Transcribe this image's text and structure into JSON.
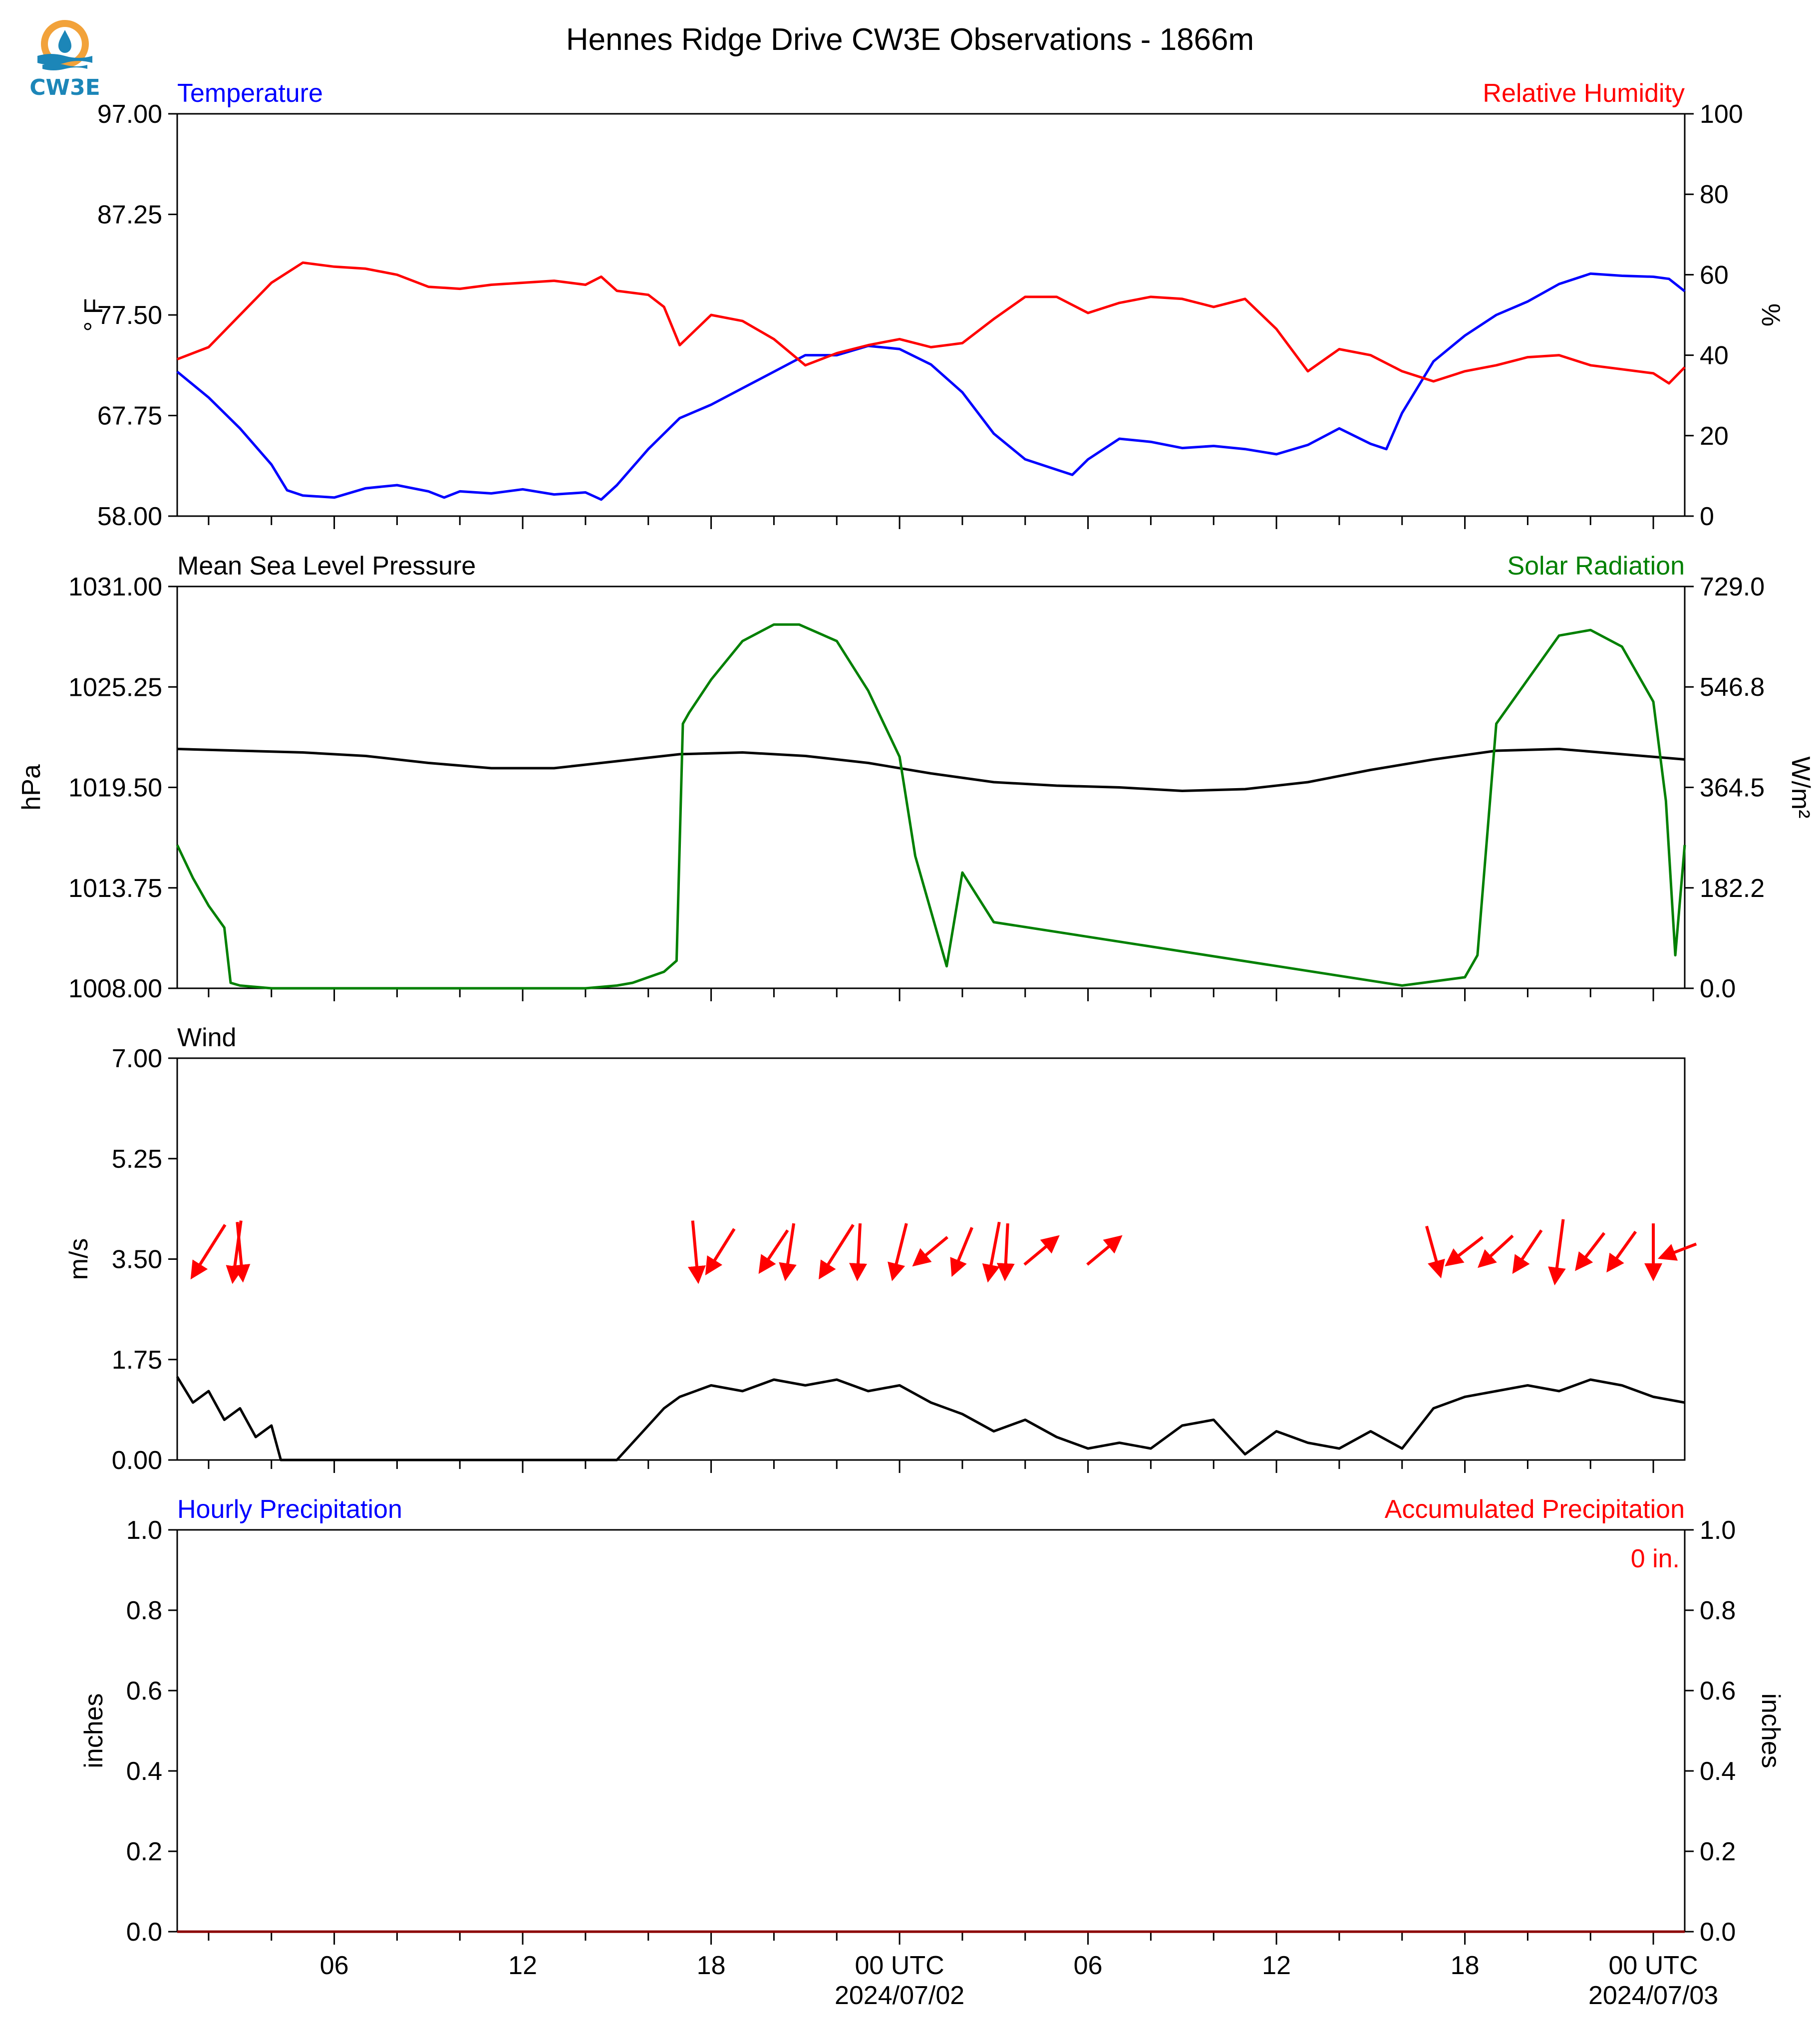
{
  "title": "Hennes Ridge Drive CW3E Observations - 1866m",
  "logo": {
    "text": "CW3E",
    "icon": "cw3e-logo-icon",
    "colors": {
      "ring": "#f2a23a",
      "drop": "#1c86b8"
    }
  },
  "x_axis": {
    "tick_labels": [
      "06",
      "12",
      "18",
      "00 UTC",
      "06",
      "12",
      "18",
      "00 UTC"
    ],
    "tick_hours": [
      6,
      12,
      18,
      24,
      30,
      36,
      42,
      48
    ],
    "date_labels": [
      {
        "hour": 24,
        "text": "2024/07/02"
      },
      {
        "hour": 48,
        "text": "2024/07/03"
      }
    ],
    "hour_range": [
      1,
      49
    ]
  },
  "chart_data": [
    {
      "type": "line",
      "panel": "temperature-humidity",
      "left_title": "Temperature",
      "right_title": "Relative Humidity",
      "ylabel": "° F",
      "ylabel_right": "%",
      "ylim": [
        58.0,
        97.0
      ],
      "ylim_right": [
        0,
        100
      ],
      "yticks": [
        "58.00",
        "67.75",
        "77.50",
        "87.25",
        "97.00"
      ],
      "yticks_right": [
        "0",
        "20",
        "40",
        "60",
        "80",
        "100"
      ],
      "series": [
        {
          "name": "Temperature",
          "axis": "left",
          "color": "#0000ff",
          "x": [
            1,
            2,
            3,
            4,
            4.5,
            5,
            6,
            7,
            8,
            9,
            9.5,
            10,
            11,
            12,
            13,
            14,
            14.5,
            15,
            16,
            17,
            18,
            19,
            20,
            21,
            22,
            23,
            24,
            25,
            26,
            27,
            28,
            29,
            29.5,
            30,
            31,
            32,
            33,
            34,
            35,
            36,
            37,
            38,
            39,
            39.5,
            40,
            41,
            42,
            43,
            44,
            45,
            46,
            47,
            48,
            48.5,
            49
          ],
          "y": [
            72.0,
            69.5,
            66.5,
            63.0,
            60.5,
            60.0,
            59.8,
            60.7,
            61.0,
            60.4,
            59.8,
            60.4,
            60.2,
            60.6,
            60.1,
            60.3,
            59.6,
            61.0,
            64.5,
            67.5,
            68.8,
            70.4,
            72.0,
            73.6,
            73.6,
            74.5,
            74.2,
            72.7,
            70.0,
            66.0,
            63.5,
            62.5,
            62.0,
            63.5,
            65.5,
            65.2,
            64.6,
            64.8,
            64.5,
            64.0,
            64.9,
            66.5,
            65.0,
            64.5,
            68.0,
            73.0,
            75.5,
            77.5,
            78.8,
            80.5,
            81.5,
            81.3,
            81.2,
            81.0,
            79.8
          ]
        },
        {
          "name": "Relative Humidity",
          "axis": "right",
          "color": "#ff0000",
          "x": [
            1,
            2,
            3,
            4,
            5,
            6,
            7,
            8,
            9,
            10,
            11,
            12,
            13,
            14,
            14.5,
            15,
            16,
            16.5,
            17,
            18,
            19,
            20,
            21,
            22,
            23,
            24,
            25,
            26,
            27,
            28,
            29,
            30,
            31,
            32,
            33,
            34,
            35,
            36,
            37,
            38,
            39,
            40,
            41,
            42,
            43,
            44,
            45,
            46,
            47,
            48,
            48.5,
            49
          ],
          "y": [
            39.0,
            42.0,
            50.0,
            58.0,
            63.0,
            62.0,
            61.5,
            60.0,
            57.0,
            56.5,
            57.5,
            58.0,
            58.5,
            57.5,
            59.5,
            56.0,
            55.0,
            52.0,
            42.5,
            50.0,
            48.5,
            44.0,
            37.5,
            40.5,
            42.5,
            44.0,
            42.0,
            43.0,
            49.0,
            54.5,
            54.5,
            50.5,
            53.0,
            54.5,
            54.0,
            52.0,
            54.0,
            46.5,
            36.0,
            41.5,
            40.0,
            36.0,
            33.5,
            36.0,
            37.5,
            39.5,
            40.0,
            37.5,
            36.5,
            35.5,
            33.0,
            37.0
          ]
        }
      ]
    },
    {
      "type": "line",
      "panel": "pressure-solar",
      "left_title": "Mean Sea Level Pressure",
      "right_title": "Solar Radiation",
      "ylabel": "hPa",
      "ylabel_right": "W/m²",
      "ylim": [
        1008.0,
        1031.0
      ],
      "ylim_right": [
        0.0,
        729.0
      ],
      "yticks": [
        "1008.00",
        "1013.75",
        "1019.50",
        "1025.25",
        "1031.00"
      ],
      "yticks_right": [
        "0.0",
        "182.2",
        "364.5",
        "546.8",
        "729.0"
      ],
      "series": [
        {
          "name": "Mean Sea Level Pressure",
          "axis": "left",
          "color": "#000000",
          "x": [
            1,
            3,
            5,
            7,
            9,
            11,
            13,
            15,
            17,
            19,
            21,
            23,
            25,
            27,
            29,
            31,
            33,
            35,
            37,
            39,
            41,
            43,
            45,
            47,
            49
          ],
          "y": [
            1021.7,
            1021.6,
            1021.5,
            1021.3,
            1020.9,
            1020.6,
            1020.6,
            1021.0,
            1021.4,
            1021.5,
            1021.3,
            1020.9,
            1020.3,
            1019.8,
            1019.6,
            1019.5,
            1019.3,
            1019.4,
            1019.8,
            1020.5,
            1021.1,
            1021.6,
            1021.7,
            1021.4,
            1021.1
          ]
        },
        {
          "name": "Solar Radiation",
          "axis": "right",
          "color": "#008000",
          "x": [
            1,
            1.5,
            2,
            2.5,
            2.7,
            3,
            4,
            6,
            8,
            10,
            12,
            14,
            15,
            15.5,
            16,
            16.5,
            16.9,
            17.1,
            17.3,
            18,
            19,
            20,
            20.8,
            22,
            23,
            24,
            24.5,
            25.5,
            26,
            27,
            40,
            42,
            42.4,
            43,
            44,
            45,
            46,
            47,
            48,
            48.4,
            48.7,
            49
          ],
          "y": [
            260,
            200,
            150,
            110,
            10,
            5,
            0,
            0,
            0,
            0,
            0,
            0,
            5,
            10,
            20,
            30,
            50,
            480,
            500,
            560,
            630,
            660,
            660,
            630,
            540,
            420,
            240,
            40,
            210,
            120,
            5,
            20,
            60,
            480,
            560,
            640,
            650,
            620,
            520,
            340,
            60,
            260
          ]
        }
      ]
    },
    {
      "type": "line",
      "panel": "wind",
      "left_title": "Wind",
      "ylabel": "m/s",
      "ylim": [
        0.0,
        7.0
      ],
      "yticks": [
        "0.00",
        "1.75",
        "3.50",
        "5.25",
        "7.00"
      ],
      "series": [
        {
          "axis": "left",
          "color": "#000000",
          "x": [
            1,
            1.5,
            2,
            2.5,
            3,
            3.5,
            4,
            4.3,
            4.6,
            5,
            10,
            15,
            15.5,
            16,
            16.5,
            17,
            18,
            19,
            20,
            21,
            22,
            23,
            24,
            25,
            26,
            27,
            28,
            29,
            30,
            31,
            32,
            33,
            34,
            35,
            36,
            37,
            38,
            39,
            40,
            41,
            42,
            43,
            44,
            45,
            46,
            47,
            48,
            49
          ],
          "y": [
            1.45,
            1.0,
            1.2,
            0.7,
            0.9,
            0.4,
            0.6,
            0.0,
            0.0,
            0.0,
            0.0,
            0.0,
            0.3,
            0.6,
            0.9,
            1.1,
            1.3,
            1.2,
            1.4,
            1.3,
            1.4,
            1.2,
            1.3,
            1.0,
            0.8,
            0.5,
            0.7,
            0.4,
            0.2,
            0.3,
            0.2,
            0.6,
            0.7,
            0.1,
            0.5,
            0.3,
            0.2,
            0.5,
            0.2,
            0.9,
            1.1,
            1.2,
            1.3,
            1.2,
            1.4,
            1.3,
            1.1,
            1.0
          ]
        }
      ],
      "wind_barbs": [
        {
          "hour": 2.0,
          "u": -1.2,
          "v": 1.9
        },
        {
          "hour": 3.0,
          "u": 0.2,
          "v": 2.1
        },
        {
          "hour": 2.9,
          "u": -0.3,
          "v": 2.2
        },
        {
          "hour": 17.5,
          "u": 0.2,
          "v": 2.2
        },
        {
          "hour": 18.3,
          "u": -1.0,
          "v": 1.6
        },
        {
          "hour": 20.0,
          "u": -1.0,
          "v": 1.5
        },
        {
          "hour": 20.5,
          "u": -0.3,
          "v": 2.0
        },
        {
          "hour": 22.0,
          "u": -1.2,
          "v": 1.9
        },
        {
          "hour": 22.7,
          "u": -0.1,
          "v": 2.0
        },
        {
          "hour": 24.0,
          "u": -0.5,
          "v": 2.0
        },
        {
          "hour": 25.0,
          "u": -1.2,
          "v": 1.0
        },
        {
          "hour": 26.0,
          "u": -0.7,
          "v": 1.7
        },
        {
          "hour": 27.0,
          "u": -0.4,
          "v": 2.1
        },
        {
          "hour": 27.4,
          "u": -0.1,
          "v": 2.0
        },
        {
          "hour": 28.5,
          "u": 1.2,
          "v": -1.0
        },
        {
          "hour": 30.5,
          "u": 1.2,
          "v": -1.0
        },
        {
          "hour": 41.0,
          "u": 0.5,
          "v": 1.8
        },
        {
          "hour": 42.0,
          "u": -1.3,
          "v": 1.0
        },
        {
          "hour": 43.0,
          "u": -1.2,
          "v": 1.1
        },
        {
          "hour": 44.0,
          "u": -1.0,
          "v": 1.5
        },
        {
          "hour": 45.0,
          "u": -0.3,
          "v": 2.3
        },
        {
          "hour": 46.0,
          "u": -1.0,
          "v": 1.3
        },
        {
          "hour": 47.0,
          "u": -1.0,
          "v": 1.4
        },
        {
          "hour": 48.0,
          "u": 0.0,
          "v": 2.0
        },
        {
          "hour": 48.8,
          "u": -1.3,
          "v": 0.5
        }
      ],
      "barb_color": "#ff0000"
    },
    {
      "type": "line",
      "panel": "precipitation",
      "left_title": "Hourly Precipitation",
      "right_title": "Accumulated Precipitation",
      "ylabel": "inches",
      "ylabel_right": "inches",
      "ylim": [
        0.0,
        1.0
      ],
      "ylim_right": [
        0.0,
        1.0
      ],
      "yticks": [
        "0.0",
        "0.2",
        "0.4",
        "0.6",
        "0.8",
        "1.0"
      ],
      "yticks_right": [
        "0.0",
        "0.2",
        "0.4",
        "0.6",
        "0.8",
        "1.0"
      ],
      "annotation": "0 in.",
      "series": [
        {
          "axis": "right",
          "color": "#8b0000",
          "x": [
            1,
            49
          ],
          "y": [
            0,
            0
          ]
        }
      ]
    }
  ],
  "colors": {
    "blue": "#0000ff",
    "red": "#ff0000",
    "green": "#008000",
    "black": "#000000"
  }
}
